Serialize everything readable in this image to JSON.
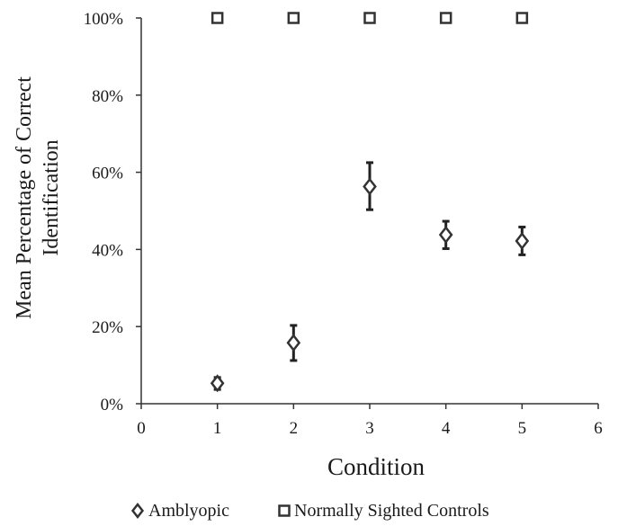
{
  "chart_data": {
    "type": "scatter",
    "xlabel": "Condition",
    "ylabel_lines": [
      "Mean Percentage of Correct",
      "Identification"
    ],
    "xlim": [
      0,
      6
    ],
    "ylim": [
      0,
      100
    ],
    "x_ticks": [
      0,
      1,
      2,
      3,
      4,
      5,
      6
    ],
    "x_tick_labels": [
      "0",
      "1",
      "2",
      "3",
      "4",
      "5",
      "6"
    ],
    "y_ticks": [
      0,
      20,
      40,
      60,
      80,
      100
    ],
    "y_tick_labels": [
      "0%",
      "20%",
      "40%",
      "60%",
      "80%",
      "100%"
    ],
    "grid": false,
    "legend_position": "bottom",
    "series": [
      {
        "name": "Amblyopic",
        "marker": "diamond",
        "color": "#333333",
        "x": [
          1,
          2,
          3,
          4,
          5
        ],
        "y": [
          5.3,
          15.8,
          56.3,
          43.8,
          42.2
        ],
        "error_low": [
          3.7,
          11.2,
          50.3,
          40.2,
          38.6
        ],
        "error_high": [
          6.8,
          20.3,
          62.5,
          47.3,
          45.8
        ]
      },
      {
        "name": "Normally Sighted Controls",
        "marker": "square",
        "color": "#333333",
        "x": [
          1,
          2,
          3,
          4,
          5
        ],
        "y": [
          100,
          100,
          100,
          100,
          100
        ]
      }
    ]
  }
}
